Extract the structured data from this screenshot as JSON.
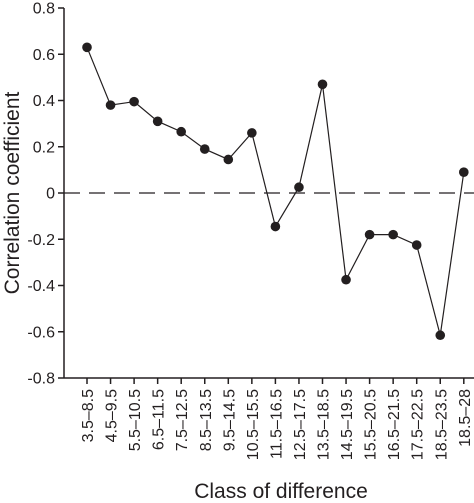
{
  "chart_data": {
    "type": "line",
    "xlabel": "Class of difference",
    "ylabel": "Correlation coefficient",
    "categories": [
      "3.5–8.5",
      "4.5–9.5",
      "5.5–10.5",
      "6.5–11.5",
      "7.5–12.5",
      "8.5–13.5",
      "9.5–14.5",
      "10.5–15.5",
      "11.5–16.5",
      "12.5–17.5",
      "13.5–18.5",
      "14.5–19.5",
      "15.5–20.5",
      "16.5–21.5",
      "17.5–22.5",
      "18.5–23.5",
      "18.5–28"
    ],
    "series": [
      {
        "values": [
          0.63,
          0.38,
          0.395,
          0.31,
          0.265,
          0.19,
          0.145,
          0.26,
          -0.145,
          0.025,
          0.47,
          -0.375,
          -0.18,
          -0.18,
          -0.225,
          -0.615,
          0.09
        ]
      }
    ],
    "ylim": [
      -0.8,
      0.8
    ],
    "yticks": [
      -0.8,
      -0.6,
      -0.4,
      -0.2,
      0,
      0.2,
      0.4,
      0.6,
      0.8
    ],
    "ytick_labels": [
      "-0.8",
      "-0.6",
      "-0.4",
      "-0.2",
      "0",
      "0.2",
      "0.4",
      "0.6",
      "0.8"
    ],
    "reference_line": {
      "y": 0,
      "style": "dashed"
    },
    "grid": false,
    "colors": {
      "line": "#231f20",
      "marker": "#231f20",
      "axis": "#231f20"
    }
  }
}
